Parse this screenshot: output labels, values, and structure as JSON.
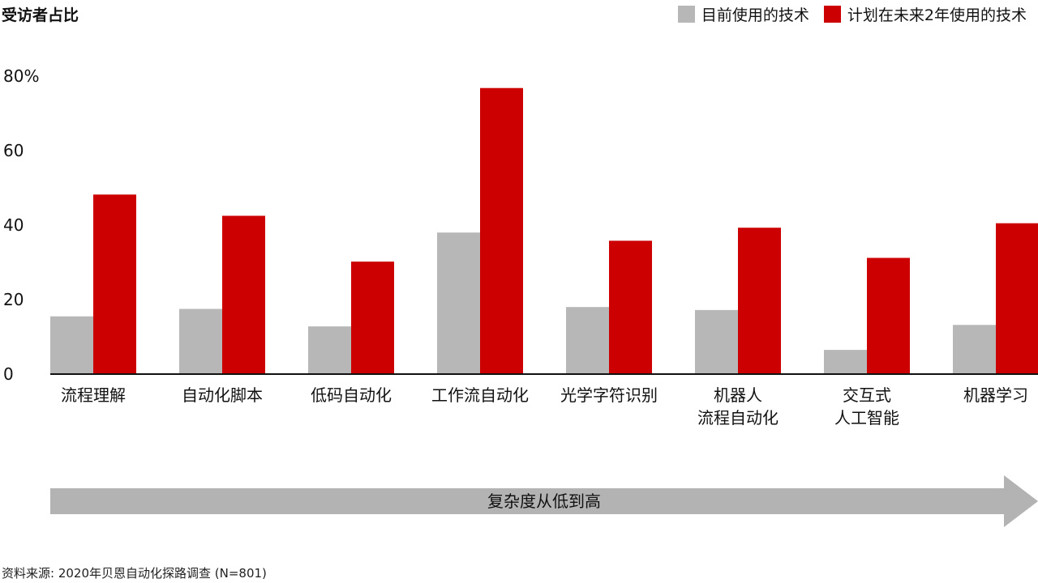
{
  "chart_data": {
    "type": "bar",
    "title": "受访者占比",
    "categories": [
      [
        "流程理解"
      ],
      [
        "自动化脚本"
      ],
      [
        "低码自动化"
      ],
      [
        "工作流自动化"
      ],
      [
        "光学字符识别"
      ],
      [
        "机器人",
        "流程自动化"
      ],
      [
        "交互式",
        "人工智能"
      ],
      [
        "机器学习"
      ]
    ],
    "series": [
      {
        "name": "目前使用的技术",
        "color": "#b7b7b7",
        "values": [
          15.5,
          17.5,
          12.8,
          38.0,
          18.0,
          17.2,
          6.5,
          13.2
        ]
      },
      {
        "name": "计划在未来2年使用的技术",
        "color": "#cc0000",
        "values": [
          48.2,
          42.5,
          30.2,
          76.8,
          35.8,
          39.3,
          31.2,
          40.5
        ]
      }
    ],
    "ylim": [
      0,
      80
    ],
    "yticks": [
      {
        "value": 0,
        "label": "0"
      },
      {
        "value": 20,
        "label": "20"
      },
      {
        "value": 40,
        "label": "40"
      },
      {
        "value": 60,
        "label": "60"
      },
      {
        "value": 80,
        "label": "80%"
      }
    ],
    "legend_position": "top-right",
    "grid": false
  },
  "arrow": {
    "label": "复杂度从低到高",
    "color": "#b3b3b3"
  },
  "source": "资料来源: 2020年贝恩自动化探路调查 (N=801)"
}
